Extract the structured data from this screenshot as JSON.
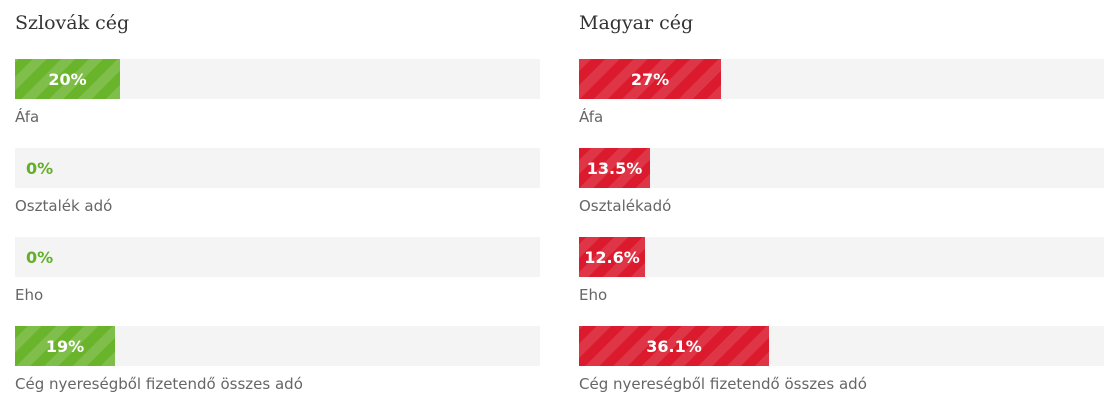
{
  "left": {
    "title": "Szlovák cég",
    "metrics": [
      {
        "label": "Áfa",
        "value_text": "20%",
        "value": 20
      },
      {
        "label": "Osztalék adó",
        "value_text": "0%",
        "value": 0
      },
      {
        "label": "Eho",
        "value_text": "0%",
        "value": 0
      },
      {
        "label": "Cég nyereségből fizetendő összes adó",
        "value_text": "19%",
        "value": 19
      }
    ]
  },
  "right": {
    "title": "Magyar cég",
    "metrics": [
      {
        "label": "Áfa",
        "value_text": "27%",
        "value": 27
      },
      {
        "label": "Osztalékadó",
        "value_text": "13.5%",
        "value": 13.5
      },
      {
        "label": "Eho",
        "value_text": "12.6%",
        "value": 12.6
      },
      {
        "label": "Cég nyereségből fizetendő összes adó",
        "value_text": "36.1%",
        "value": 36.1
      }
    ]
  },
  "colors": {
    "green": "#6ab42c",
    "red": "#db1a2e",
    "track": "#f4f4f4"
  },
  "chart_data": [
    {
      "type": "bar",
      "title": "Szlovák cég",
      "categories": [
        "Áfa",
        "Osztalék adó",
        "Eho",
        "Cég nyereségből fizetendő összes adó"
      ],
      "values": [
        20,
        0,
        0,
        19
      ],
      "ylim": [
        0,
        100
      ]
    },
    {
      "type": "bar",
      "title": "Magyar cég",
      "categories": [
        "Áfa",
        "Osztalékadó",
        "Eho",
        "Cég nyereségből fizetendő összes adó"
      ],
      "values": [
        27,
        13.5,
        12.6,
        36.1
      ],
      "ylim": [
        0,
        100
      ]
    }
  ]
}
